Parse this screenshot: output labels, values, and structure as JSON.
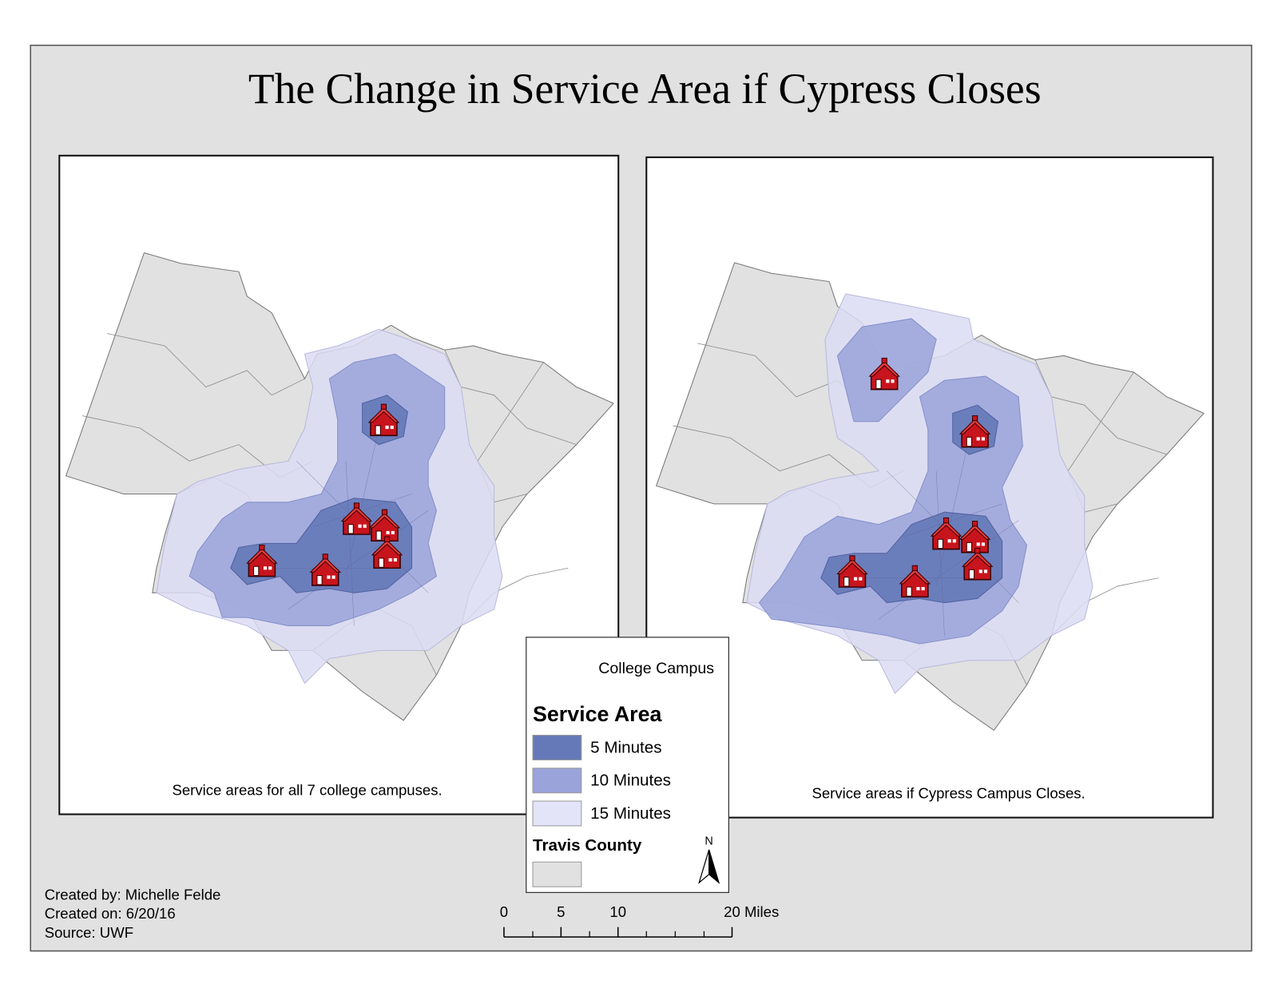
{
  "title": "The Change in Service Area if Cypress Closes",
  "maps": [
    {
      "caption": "Service areas for all 7 college campuses."
    },
    {
      "caption": "Service areas if Cypress Campus Closes."
    }
  ],
  "legend": {
    "campus_label": "College Campus",
    "service_area_title": "Service Area",
    "items": [
      {
        "label": "5 Minutes",
        "color": "#6579b8"
      },
      {
        "label": "10 Minutes",
        "color": "#9aa3da"
      },
      {
        "label": "15 Minutes",
        "color": "#e4e4f8"
      }
    ],
    "county_title": "Travis County",
    "county_color": "#e1e1e1",
    "north": "N"
  },
  "credits": [
    "Created by: Michelle Felde",
    "Created on: 6/20/16",
    "Source: UWF"
  ],
  "scale_bar": {
    "ticks": [
      0,
      5,
      10,
      {
        "value": 20,
        "label": "20 Miles"
      }
    ],
    "range": [
      0,
      20
    ]
  }
}
